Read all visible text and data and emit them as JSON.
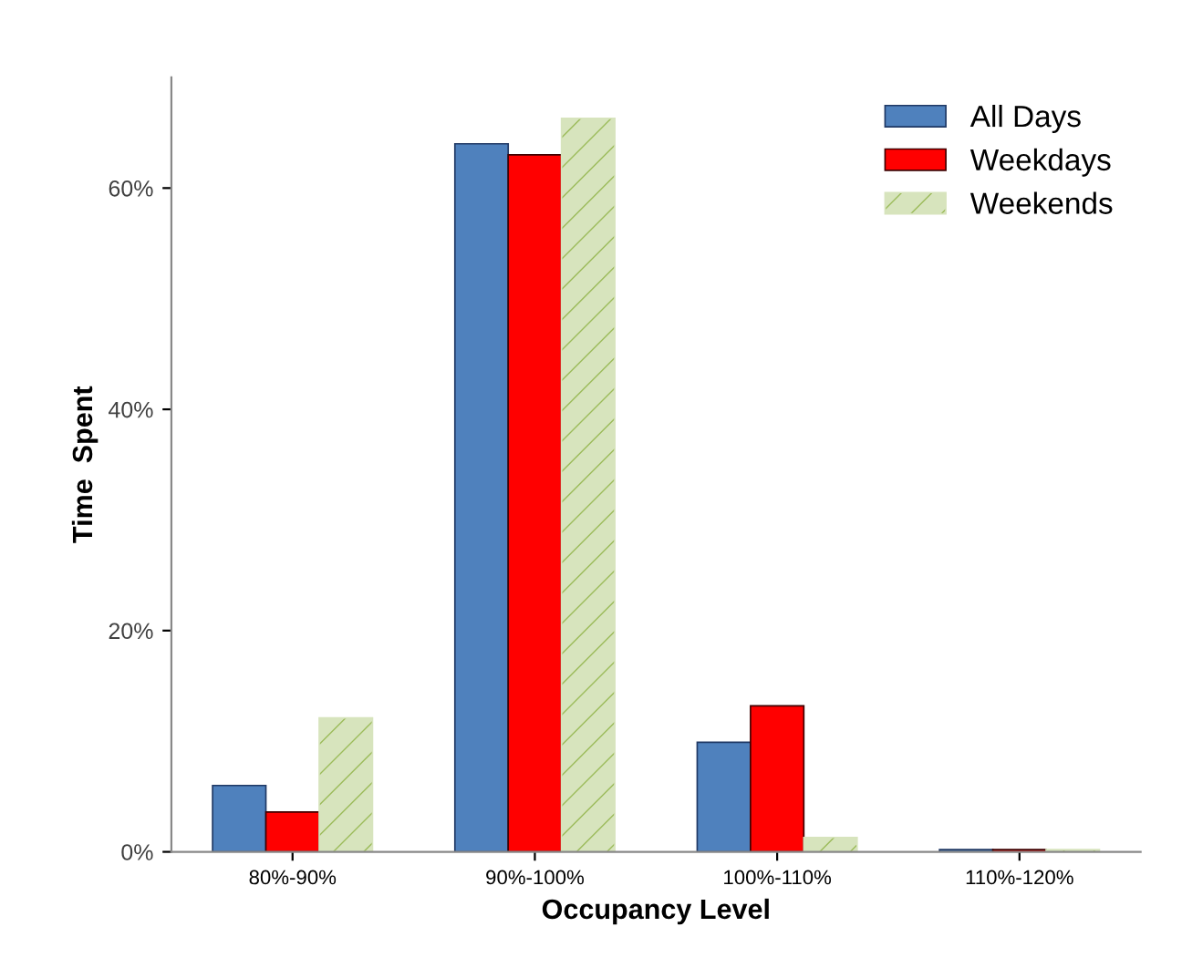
{
  "chart_data": {
    "type": "bar",
    "xlabel": "Occupancy Level",
    "ylabel": "Time  Spent",
    "categories": [
      "80%-90%",
      "90%-100%",
      "100%-110%",
      "110%-120%"
    ],
    "series": [
      {
        "name": "All Days",
        "color": "#4f81bd",
        "values": [
          6.0,
          64,
          9.9,
          0.2
        ]
      },
      {
        "name": "Weekdays",
        "color": "#ff0000",
        "values": [
          3.6,
          63,
          13.2,
          0.2
        ]
      },
      {
        "name": "Weekends",
        "color": "#d7e4bd",
        "values": [
          12.1,
          66.3,
          1.3,
          0.2
        ]
      }
    ],
    "ylim": [
      0,
      70
    ],
    "yticks": [
      {
        "value": 0,
        "label": "0%"
      },
      {
        "value": 20,
        "label": "20%"
      },
      {
        "value": 40,
        "label": "40%"
      },
      {
        "value": 60,
        "label": "60%"
      }
    ],
    "grid": false,
    "legend": "top right"
  }
}
